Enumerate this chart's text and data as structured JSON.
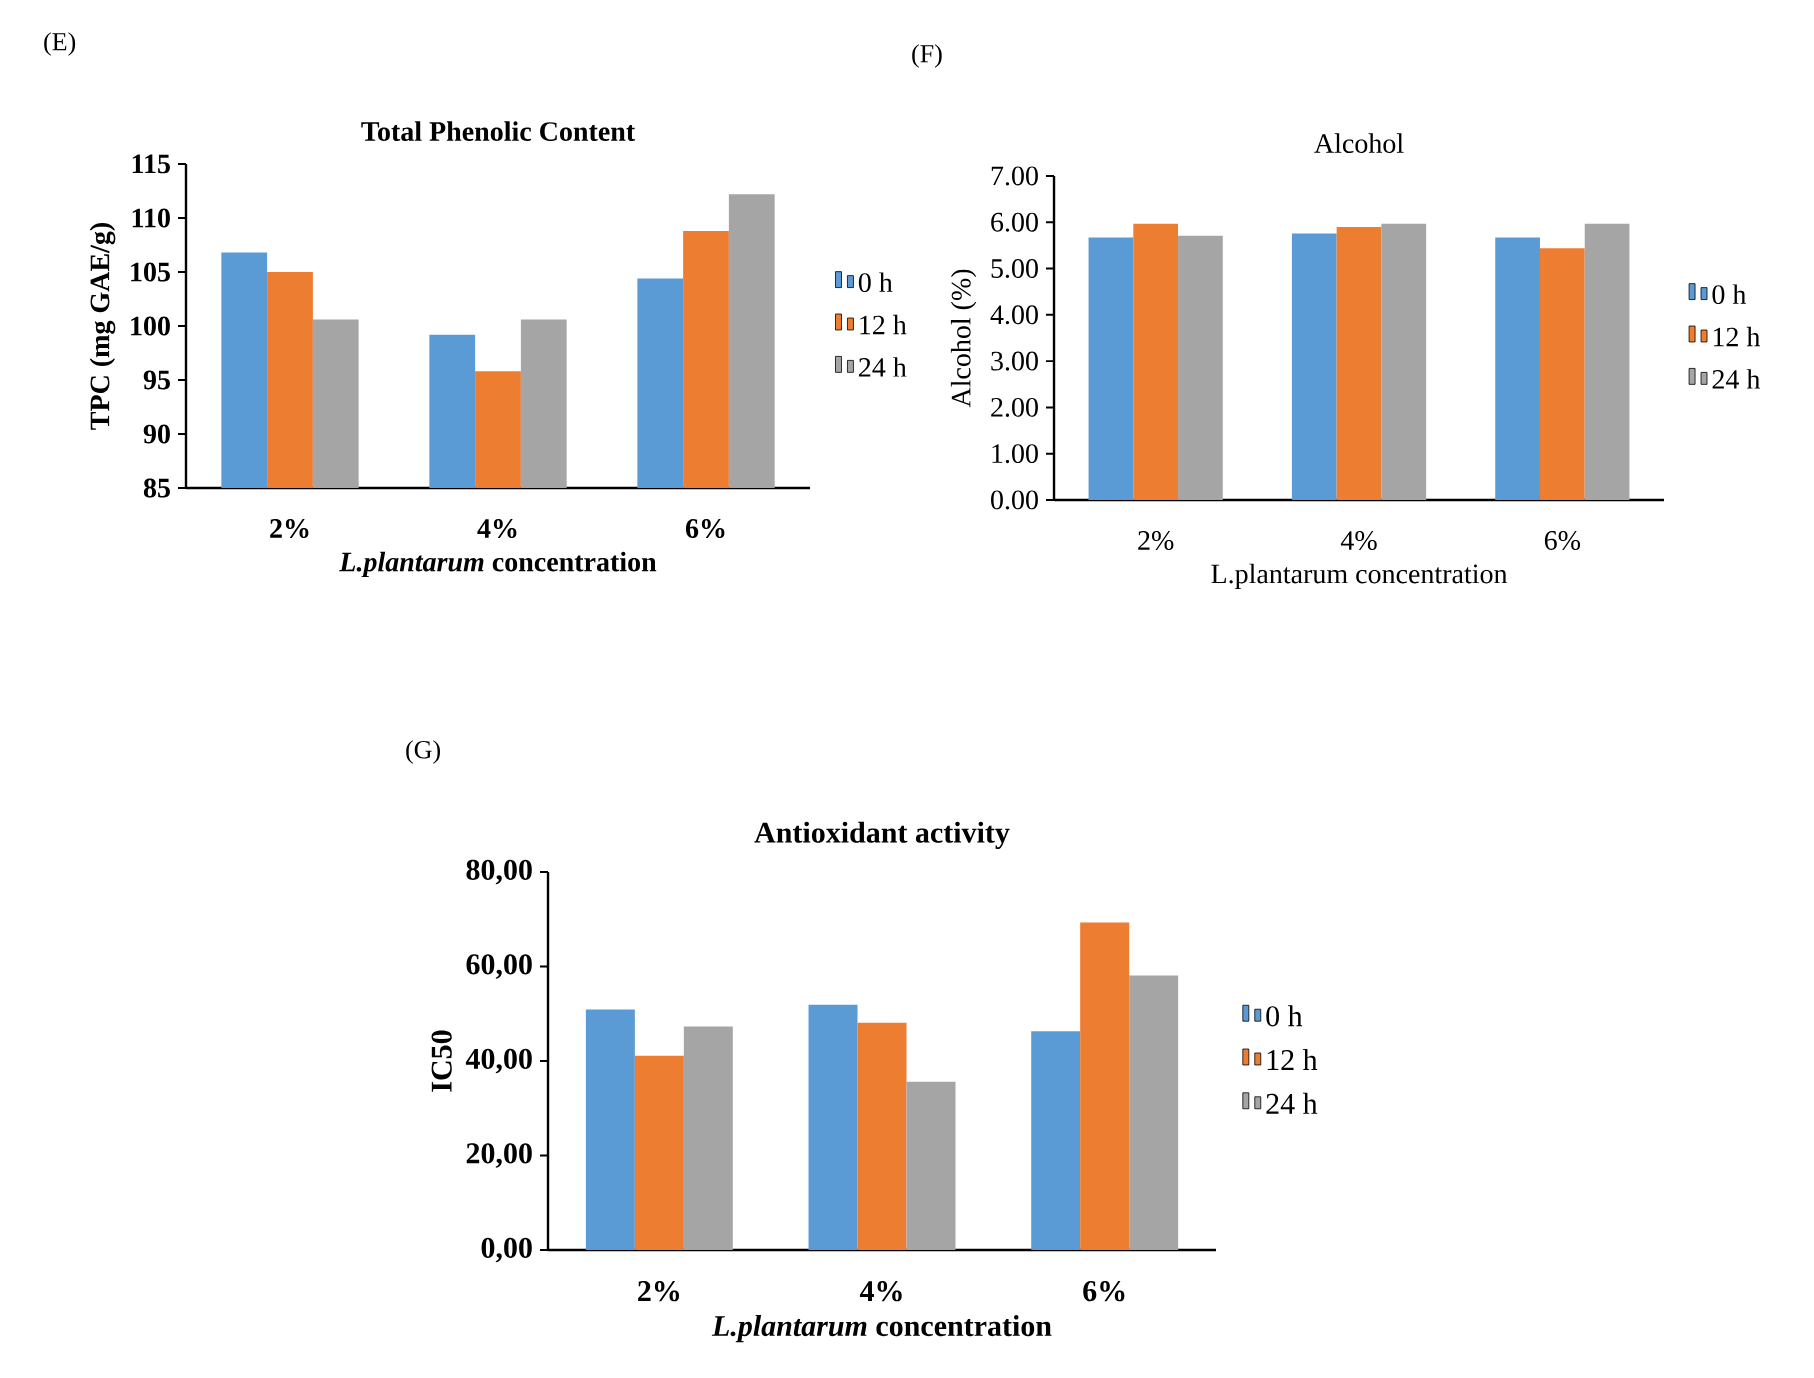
{
  "chart_data": [
    {
      "type": "bar",
      "title": "Total Phenolic Content",
      "xlabel": "*L.plantarum* concentration",
      "ylabel": "TPC (mg GAE/g)",
      "annotations": [
        "(E)"
      ],
      "categories": [
        "2%",
        "4%",
        "6%"
      ],
      "series": [
        {
          "name": "0 h",
          "color": "#5b9bd5",
          "values": [
            106.8,
            99.2,
            104.4
          ]
        },
        {
          "name": "12 h",
          "color": "#ed7d31",
          "values": [
            105.0,
            95.8,
            108.8
          ]
        },
        {
          "name": "24 h",
          "color": "#a5a5a5",
          "values": [
            100.6,
            100.6,
            112.2
          ]
        }
      ],
      "ylim": [
        85,
        115
      ],
      "yticks": [
        85,
        90,
        95,
        100,
        105,
        110,
        115
      ],
      "legend": "right"
    },
    {
      "type": "bar",
      "title": "Alcohol",
      "xlabel": "L.plantarum concentration",
      "ylabel": "Alcohol (%)",
      "annotations": [
        "(F)"
      ],
      "categories": [
        "2%",
        "4%",
        "6%"
      ],
      "series": [
        {
          "name": "0 h",
          "color": "#5b9bd5",
          "values": [
            5.67,
            5.76,
            5.67
          ]
        },
        {
          "name": "12 h",
          "color": "#ed7d31",
          "values": [
            5.97,
            5.9,
            5.44
          ]
        },
        {
          "name": "24 h",
          "color": "#a5a5a5",
          "values": [
            5.71,
            5.97,
            5.97
          ]
        }
      ],
      "ylim": [
        0,
        7
      ],
      "yticks": [
        {
          "value": 0,
          "label": "0.00"
        },
        {
          "value": 1,
          "label": "1.00"
        },
        {
          "value": 2,
          "label": "2.00"
        },
        {
          "value": 3,
          "label": "3.00"
        },
        {
          "value": 4,
          "label": "4.00"
        },
        {
          "value": 5,
          "label": "5.00"
        },
        {
          "value": 6,
          "label": "6.00"
        },
        {
          "value": 7,
          "label": "7.00"
        }
      ],
      "legend": "right"
    },
    {
      "type": "bar",
      "title": "Antioxidant activity",
      "xlabel": "*L.plantarum* concentration",
      "ylabel": "IC50",
      "annotations": [
        "(G)"
      ],
      "categories": [
        "2%",
        "4%",
        "6%"
      ],
      "series": [
        {
          "name": "0 h",
          "color": "#5b9bd5",
          "values": [
            50.9,
            51.9,
            46.3
          ]
        },
        {
          "name": "12 h",
          "color": "#ed7d31",
          "values": [
            41.1,
            48.1,
            69.3
          ]
        },
        {
          "name": "24 h",
          "color": "#a5a5a5",
          "values": [
            47.3,
            35.6,
            58.1
          ]
        }
      ],
      "ylim": [
        0,
        80
      ],
      "yticks": [
        {
          "value": 0,
          "label": "0,00"
        },
        {
          "value": 20,
          "label": "20,00"
        },
        {
          "value": 40,
          "label": "40,00"
        },
        {
          "value": 60,
          "label": "60,00"
        },
        {
          "value": 80,
          "label": "80,00"
        }
      ],
      "legend": "right"
    }
  ]
}
